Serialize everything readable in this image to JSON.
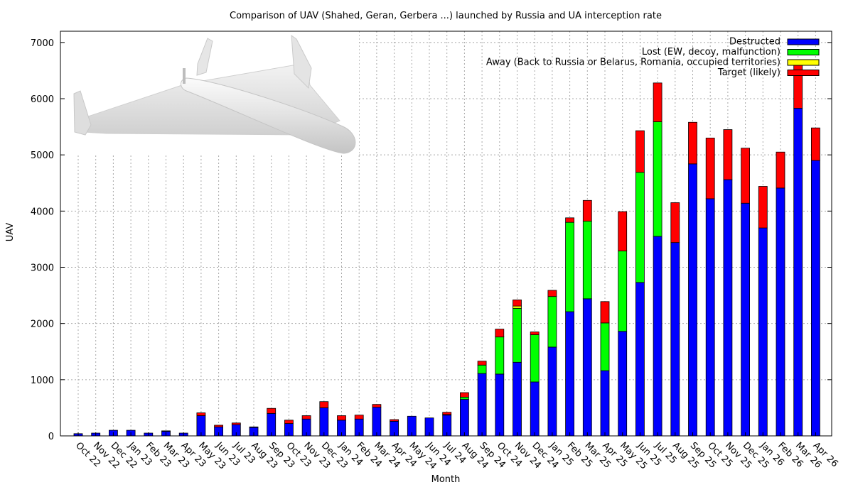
{
  "chart_data": {
    "type": "bar",
    "stacked": true,
    "title": "Comparison of UAV (Shahed, Geran, Gerbera ...) launched by Russia and UA interception rate",
    "xlabel": "Month",
    "ylabel": "UAV",
    "ylim": [
      0,
      7200
    ],
    "yticks": [
      0,
      1000,
      2000,
      3000,
      4000,
      5000,
      6000,
      7000
    ],
    "grid": true,
    "legend_position": "top-right",
    "illustration": "shahed-drone-illustration",
    "categories": [
      "Oct 22",
      "Nov 22",
      "Dec 22",
      "Jan 23",
      "Feb 23",
      "Mar 23",
      "Apr 23",
      "May 23",
      "Jun 23",
      "Jul 23",
      "Aug 23",
      "Sep 23",
      "Oct 23",
      "Nov 23",
      "Dec 23",
      "Jan 24",
      "Feb 24",
      "Mar 24",
      "Apr 24",
      "May 24",
      "Jun 24",
      "Jul 24",
      "Aug 24",
      "Sep 24",
      "Oct 24",
      "Nov 24",
      "Dec 24",
      "Jan 25",
      "Feb 25",
      "Mar 25",
      "Apr 25",
      "May 25",
      "Jun 25",
      "Jul 25",
      "Aug 25",
      "Sep 25",
      "Oct 25",
      "Nov 25",
      "Dec 25",
      "Jan 26",
      "Feb 26",
      "Mar 26",
      "Apr 26"
    ],
    "series": [
      {
        "name": "Destructed",
        "color": "#0000ff",
        "values": [
          40,
          50,
          100,
          100,
          50,
          80,
          50,
          360,
          160,
          200,
          150,
          400,
          220,
          300,
          500,
          280,
          300,
          510,
          260,
          350,
          320,
          370,
          650,
          1110,
          1100,
          1310,
          960,
          1580,
          2210,
          2440,
          1160,
          1860,
          2730,
          3550,
          3440,
          4840,
          4220,
          4560,
          4140,
          3700,
          4410,
          5830,
          4900
        ]
      },
      {
        "name": "Lost (EW, decoy, malfunction)",
        "color": "#00ff00",
        "values": [
          0,
          0,
          0,
          0,
          0,
          0,
          0,
          0,
          0,
          0,
          0,
          0,
          0,
          0,
          0,
          0,
          0,
          0,
          0,
          0,
          0,
          10,
          40,
          150,
          660,
          960,
          840,
          900,
          1590,
          1380,
          850,
          1430,
          1960,
          2040,
          0,
          0,
          0,
          0,
          0,
          0,
          0,
          0,
          0
        ]
      },
      {
        "name": "Away (Back to Russia or Belarus, Romania, occupied territories)",
        "color": "#ffff00",
        "values": [
          0,
          0,
          0,
          0,
          0,
          0,
          0,
          0,
          0,
          0,
          0,
          0,
          0,
          0,
          0,
          0,
          0,
          0,
          0,
          0,
          0,
          0,
          0,
          0,
          0,
          40,
          0,
          0,
          0,
          0,
          0,
          0,
          0,
          0,
          0,
          0,
          0,
          0,
          0,
          0,
          0,
          0,
          0
        ]
      },
      {
        "name": "Target (likely)",
        "color": "#ff0000",
        "values": [
          0,
          0,
          0,
          0,
          0,
          10,
          0,
          50,
          30,
          30,
          10,
          90,
          60,
          60,
          110,
          80,
          70,
          50,
          30,
          0,
          0,
          40,
          80,
          70,
          140,
          110,
          50,
          110,
          80,
          370,
          380,
          700,
          740,
          690,
          710,
          740,
          1080,
          890,
          980,
          740,
          640,
          840,
          580
        ]
      }
    ]
  }
}
